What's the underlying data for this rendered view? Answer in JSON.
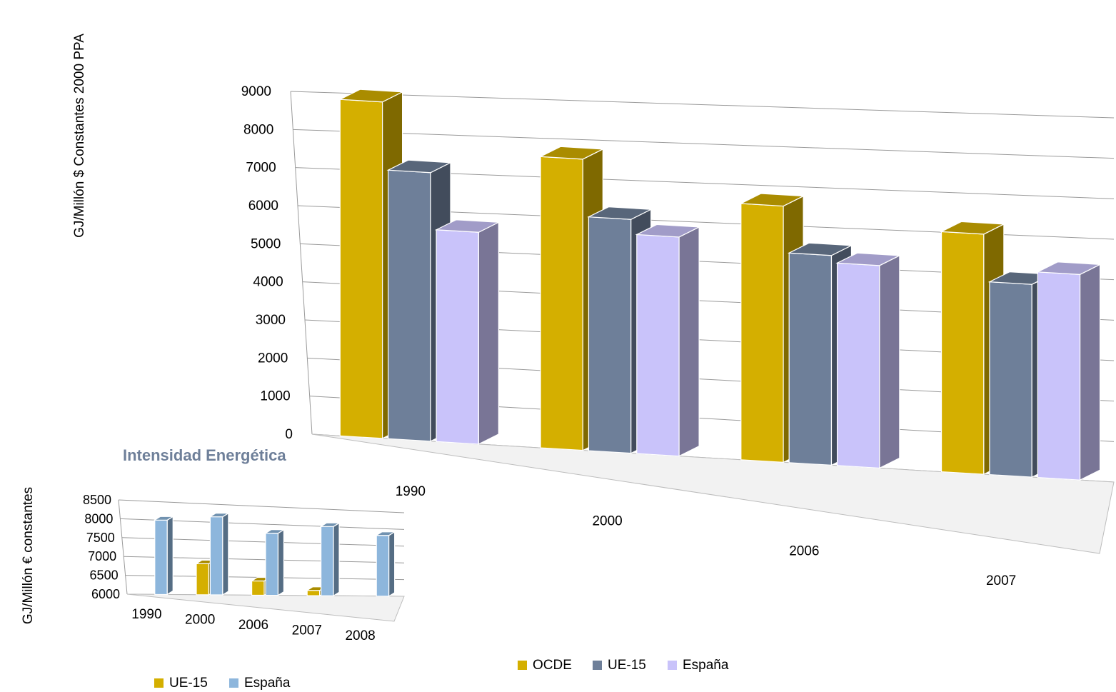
{
  "chart_data": [
    {
      "type": "bar",
      "style": "3d-clustered-column",
      "title": "",
      "xlabel": "",
      "ylabel": "GJ/Millón $ Constantes 2000 PPA",
      "ylim": [
        0,
        9000
      ],
      "yticks": [
        "0",
        "1000",
        "2000",
        "3000",
        "4000",
        "5000",
        "6000",
        "7000",
        "8000",
        "9000"
      ],
      "categories": [
        "1990",
        "2000",
        "2006",
        "2007"
      ],
      "series": [
        {
          "name": "OCDE",
          "color": "#D4AF00",
          "values": [
            8800,
            7500,
            6500,
            6000
          ]
        },
        {
          "name": "UE-15",
          "color": "#6E7F99",
          "values": [
            7000,
            6000,
            5300,
            4800
          ]
        },
        {
          "name": "España",
          "color": "#C9C3FA",
          "values": [
            5500,
            5600,
            5100,
            5100
          ]
        }
      ],
      "grid": true,
      "legend": "bottom"
    },
    {
      "type": "bar",
      "style": "3d-clustered-column",
      "title": "Intensidad Energética",
      "xlabel": "",
      "ylabel": "GJ/Millón €  constantes",
      "ylim": [
        6000,
        8500
      ],
      "yticks": [
        "6000",
        "6500",
        "7000",
        "7500",
        "8000",
        "8500"
      ],
      "categories": [
        "1990",
        "2000",
        "2006",
        "2007",
        "2008"
      ],
      "series": [
        {
          "name": "UE-15",
          "color": "#D4AF00",
          "values": [
            null,
            6850,
            6400,
            6150,
            null
          ]
        },
        {
          "name": "España",
          "color": "#8DB6DC",
          "values": [
            8000,
            8150,
            7750,
            8000,
            7800
          ]
        }
      ],
      "grid": true,
      "legend": "bottom-left"
    }
  ]
}
